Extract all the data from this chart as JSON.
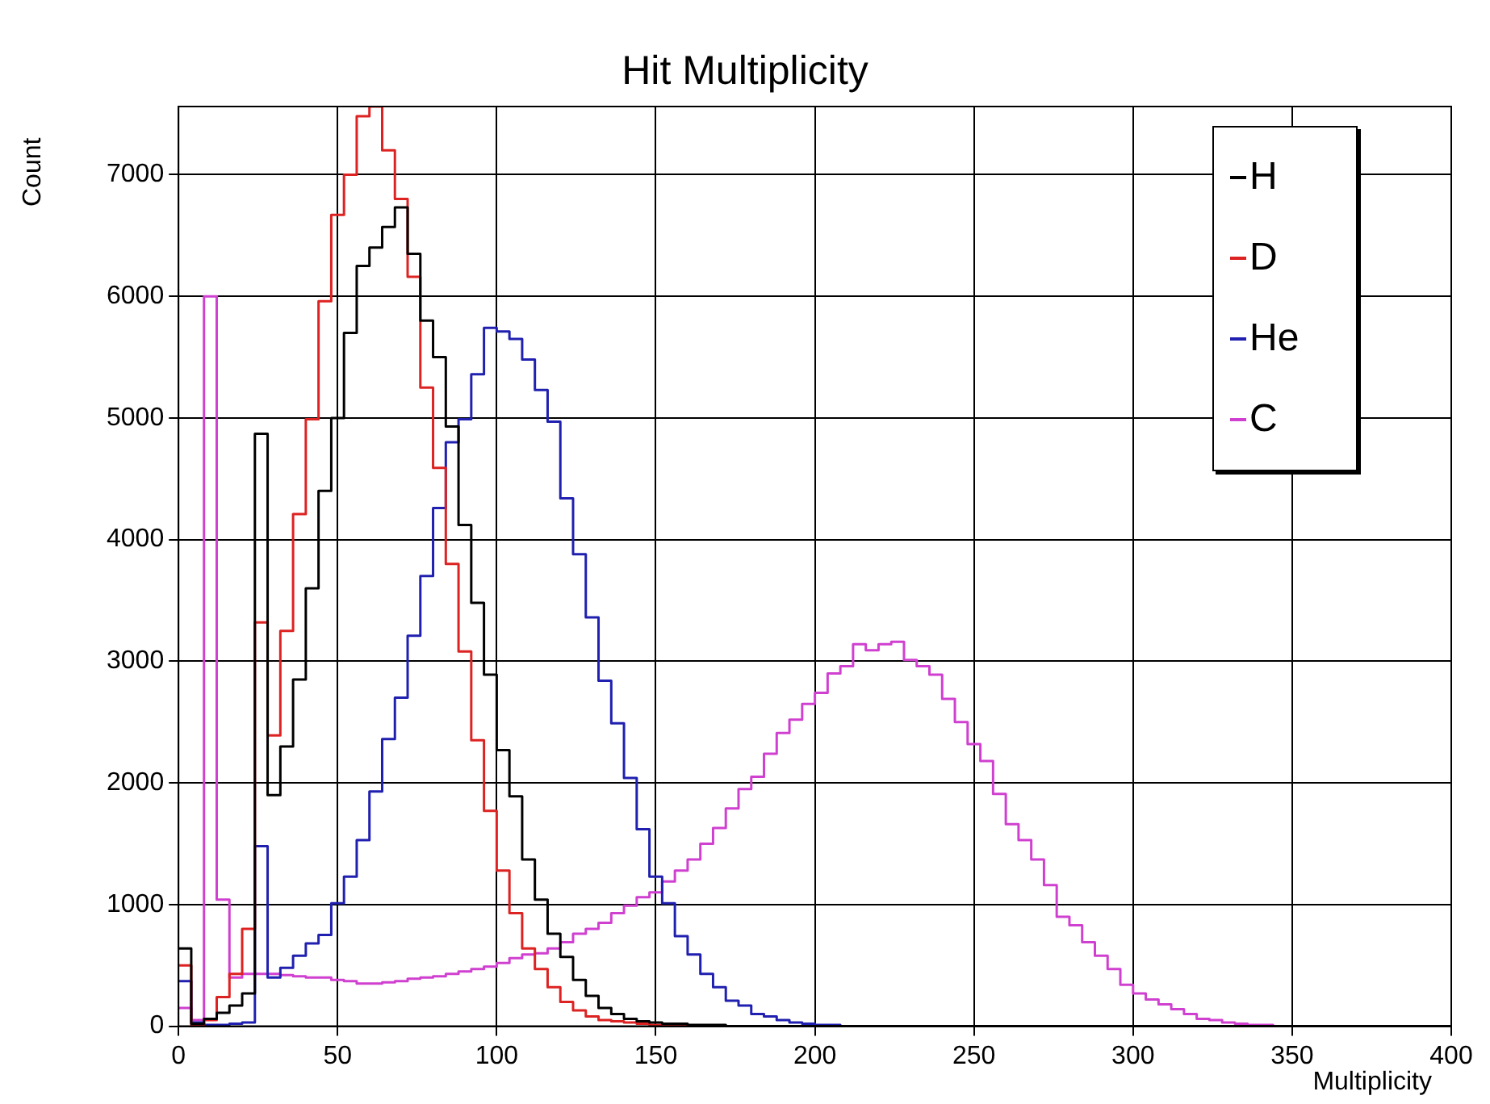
{
  "chart_data": {
    "type": "histogram",
    "title": "Hit Multiplicity",
    "xlabel": "Multiplicity",
    "ylabel": "Count",
    "bins": [
      0,
      4,
      8,
      12,
      16,
      20,
      24,
      28,
      32,
      36,
      40,
      44,
      48,
      52,
      56,
      60,
      64,
      68,
      72,
      76,
      80,
      84,
      88,
      92,
      96,
      100,
      104,
      108,
      112,
      116,
      120,
      124,
      128,
      132,
      136,
      140,
      144,
      148,
      152,
      156,
      160,
      164,
      168,
      172,
      176,
      180,
      184,
      188,
      192,
      196,
      200,
      204,
      208,
      212,
      216,
      220,
      224,
      228,
      232,
      236,
      240,
      244,
      248,
      252,
      256,
      260,
      264,
      268,
      272,
      276,
      280,
      284,
      288,
      292,
      296,
      300,
      304,
      308,
      312,
      316,
      320,
      324,
      328,
      332,
      336,
      340,
      344,
      348,
      352,
      356,
      360,
      364,
      368,
      372,
      376,
      380,
      384,
      388,
      392,
      396,
      400
    ],
    "series": [
      {
        "name": "H",
        "color": "#000000",
        "values": [
          640,
          20,
          60,
          110,
          170,
          270,
          4870,
          1900,
          2300,
          2850,
          3600,
          4400,
          5000,
          5700,
          6250,
          6400,
          6570,
          6730,
          6350,
          5800,
          5500,
          4930,
          4120,
          3480,
          2890,
          2270,
          1890,
          1370,
          1040,
          760,
          570,
          380,
          250,
          150,
          100,
          60,
          40,
          30,
          20,
          20,
          10,
          10,
          10,
          0,
          0,
          0,
          0,
          0,
          0,
          0,
          0,
          0,
          0,
          0,
          0,
          0,
          0,
          0,
          0,
          0,
          0,
          0,
          0,
          0,
          0,
          0,
          0,
          0,
          0,
          0,
          0,
          0,
          0,
          0,
          0,
          0,
          0,
          0,
          0,
          0,
          0,
          0,
          0,
          0,
          0,
          0,
          0,
          0,
          0,
          0,
          0,
          0,
          0,
          0,
          0,
          0,
          0,
          0,
          0,
          0
        ]
      },
      {
        "name": "D",
        "color": "#dd2222",
        "values": [
          500,
          10,
          50,
          240,
          430,
          800,
          3320,
          2390,
          3250,
          4210,
          4990,
          5960,
          6670,
          7000,
          7480,
          7560,
          7200,
          6800,
          6160,
          5250,
          4590,
          3800,
          3080,
          2350,
          1770,
          1280,
          930,
          640,
          470,
          320,
          200,
          130,
          80,
          50,
          40,
          30,
          20,
          10,
          10,
          0,
          0,
          0,
          0,
          0,
          0,
          0,
          0,
          0,
          0,
          0,
          0,
          0,
          0,
          0,
          0,
          0,
          0,
          0,
          0,
          0,
          0,
          0,
          0,
          0,
          0,
          0,
          0,
          0,
          0,
          0,
          0,
          0,
          0,
          0,
          0,
          0,
          0,
          0,
          0,
          0,
          0,
          0,
          0,
          0,
          0,
          0,
          0,
          0,
          0,
          0,
          0,
          0,
          0,
          0,
          0,
          0,
          0,
          0,
          0,
          0
        ]
      },
      {
        "name": "He",
        "color": "#2020b0",
        "values": [
          370,
          30,
          10,
          10,
          20,
          30,
          1480,
          400,
          480,
          580,
          680,
          750,
          1010,
          1230,
          1530,
          1930,
          2360,
          2700,
          3210,
          3700,
          4260,
          4800,
          4990,
          5360,
          5740,
          5710,
          5650,
          5480,
          5230,
          4970,
          4340,
          3880,
          3360,
          2840,
          2490,
          2040,
          1620,
          1230,
          1010,
          740,
          590,
          430,
          320,
          210,
          170,
          100,
          80,
          50,
          30,
          20,
          10,
          10,
          0,
          0,
          0,
          0,
          0,
          0,
          0,
          0,
          0,
          0,
          0,
          0,
          0,
          0,
          0,
          0,
          0,
          0,
          0,
          0,
          0,
          0,
          0,
          0,
          0,
          0,
          0,
          0,
          0,
          0,
          0,
          0,
          0,
          0,
          0,
          0,
          0,
          0,
          0,
          0,
          0,
          0,
          0,
          0,
          0,
          0,
          0,
          0
        ]
      },
      {
        "name": "C",
        "color": "#d040d0",
        "values": [
          150,
          50,
          6000,
          1040,
          400,
          430,
          430,
          430,
          420,
          410,
          400,
          400,
          380,
          370,
          350,
          350,
          360,
          370,
          390,
          400,
          410,
          430,
          450,
          470,
          490,
          520,
          560,
          590,
          600,
          640,
          690,
          760,
          800,
          850,
          930,
          990,
          1060,
          1100,
          1190,
          1280,
          1370,
          1500,
          1630,
          1790,
          1950,
          2050,
          2240,
          2410,
          2520,
          2650,
          2740,
          2900,
          2960,
          3140,
          3090,
          3140,
          3160,
          3010,
          2960,
          2890,
          2690,
          2500,
          2320,
          2180,
          1910,
          1660,
          1530,
          1370,
          1160,
          900,
          830,
          690,
          580,
          470,
          340,
          270,
          220,
          180,
          140,
          100,
          60,
          50,
          30,
          20,
          10,
          10,
          0,
          0,
          0,
          0,
          0,
          0,
          0,
          0,
          0,
          0,
          0,
          0,
          0,
          0
        ]
      }
    ],
    "xlim": [
      0,
      400
    ],
    "xticks": [
      0,
      50,
      100,
      150,
      200,
      250,
      300,
      350,
      400
    ],
    "ylim": [
      0,
      7560
    ],
    "yticks": [
      0,
      1000,
      2000,
      3000,
      4000,
      5000,
      6000,
      7000
    ],
    "grid": true,
    "legend": "top right",
    "line_style": "solid",
    "marker": "none"
  }
}
